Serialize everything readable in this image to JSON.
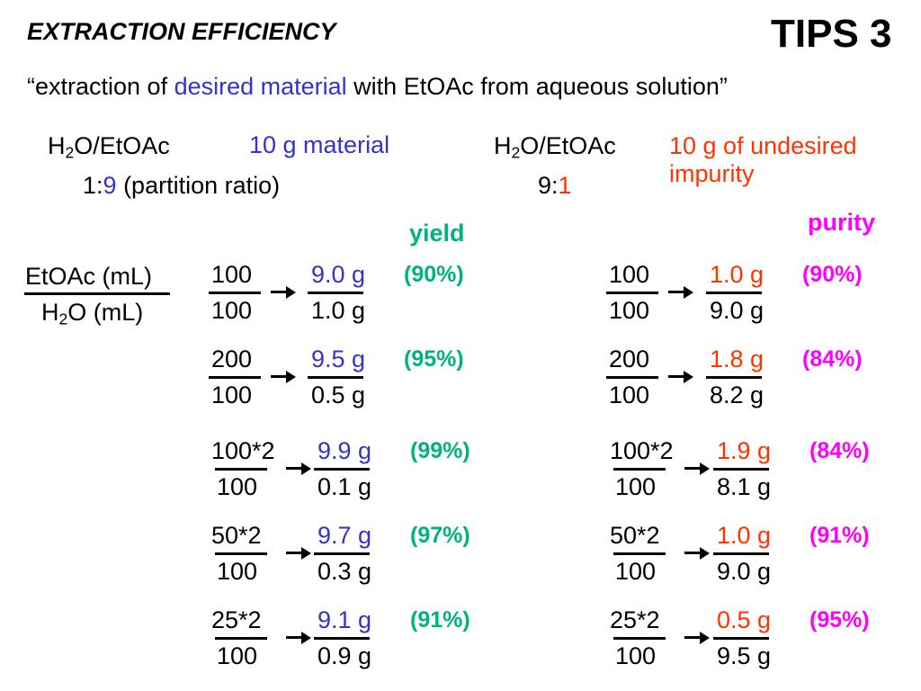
{
  "colors": {
    "blue": "#3333cc",
    "green": "#00b37e",
    "red": "#ff3300",
    "magenta": "#ff00ff",
    "black": "#000000"
  },
  "header": {
    "title": "EXTRACTION EFFICIENCY",
    "tips": "TIPS 3"
  },
  "subtitle": {
    "part1": "“extraction of ",
    "highlight": "desired material",
    "part2": " with EtOAc from aqueous solution”"
  },
  "left_setup": {
    "solvent_prefix": "H",
    "solvent_sub": "2",
    "solvent_suffix": "O/EtOAc",
    "ratio_first": "1:",
    "ratio_second": "9",
    "ratio_note": " (partition ratio)",
    "material": "10 g material",
    "metric_label": "yield"
  },
  "right_setup": {
    "solvent_prefix": "H",
    "solvent_sub": "2",
    "solvent_suffix": "O/EtOAc",
    "ratio_first": "9:",
    "ratio_second": "1",
    "impurity_line1": "10 g of undesired",
    "impurity_line2": "impurity",
    "metric_label": "purity"
  },
  "axis_label": {
    "top": "EtOAc (mL)",
    "bottom_prefix": "H",
    "bottom_sub": "2",
    "bottom_suffix": "O (mL)"
  },
  "left_rows": [
    {
      "top": "100",
      "bottom": "100",
      "res_top": "9.0 g",
      "res_bottom": "1.0 g",
      "pct": "(90%)"
    },
    {
      "top": "200",
      "bottom": "100",
      "res_top": "9.5 g",
      "res_bottom": "0.5 g",
      "pct": "(95%)"
    },
    {
      "top": "100*2",
      "bottom": "100",
      "res_top": "9.9 g",
      "res_bottom": "0.1 g",
      "pct": "(99%)"
    },
    {
      "top": "50*2",
      "bottom": "100",
      "res_top": "9.7 g",
      "res_bottom": "0.3 g",
      "pct": "(97%)"
    },
    {
      "top": "25*2",
      "bottom": "100",
      "res_top": "9.1 g",
      "res_bottom": "0.9 g",
      "pct": "(91%)"
    }
  ],
  "right_rows": [
    {
      "top": "100",
      "bottom": "100",
      "res_top": "1.0 g",
      "res_bottom": "9.0 g",
      "pct": "(90%)"
    },
    {
      "top": "200",
      "bottom": "100",
      "res_top": "1.8 g",
      "res_bottom": "8.2 g",
      "pct": "(84%)"
    },
    {
      "top": "100*2",
      "bottom": "100",
      "res_top": "1.9 g",
      "res_bottom": "8.1 g",
      "pct": "(84%)"
    },
    {
      "top": "50*2",
      "bottom": "100",
      "res_top": "1.0 g",
      "res_bottom": "9.0 g",
      "pct": "(91%)"
    },
    {
      "top": "25*2",
      "bottom": "100",
      "res_top": "0.5 g",
      "res_bottom": "9.5 g",
      "pct": "(95%)"
    }
  ]
}
